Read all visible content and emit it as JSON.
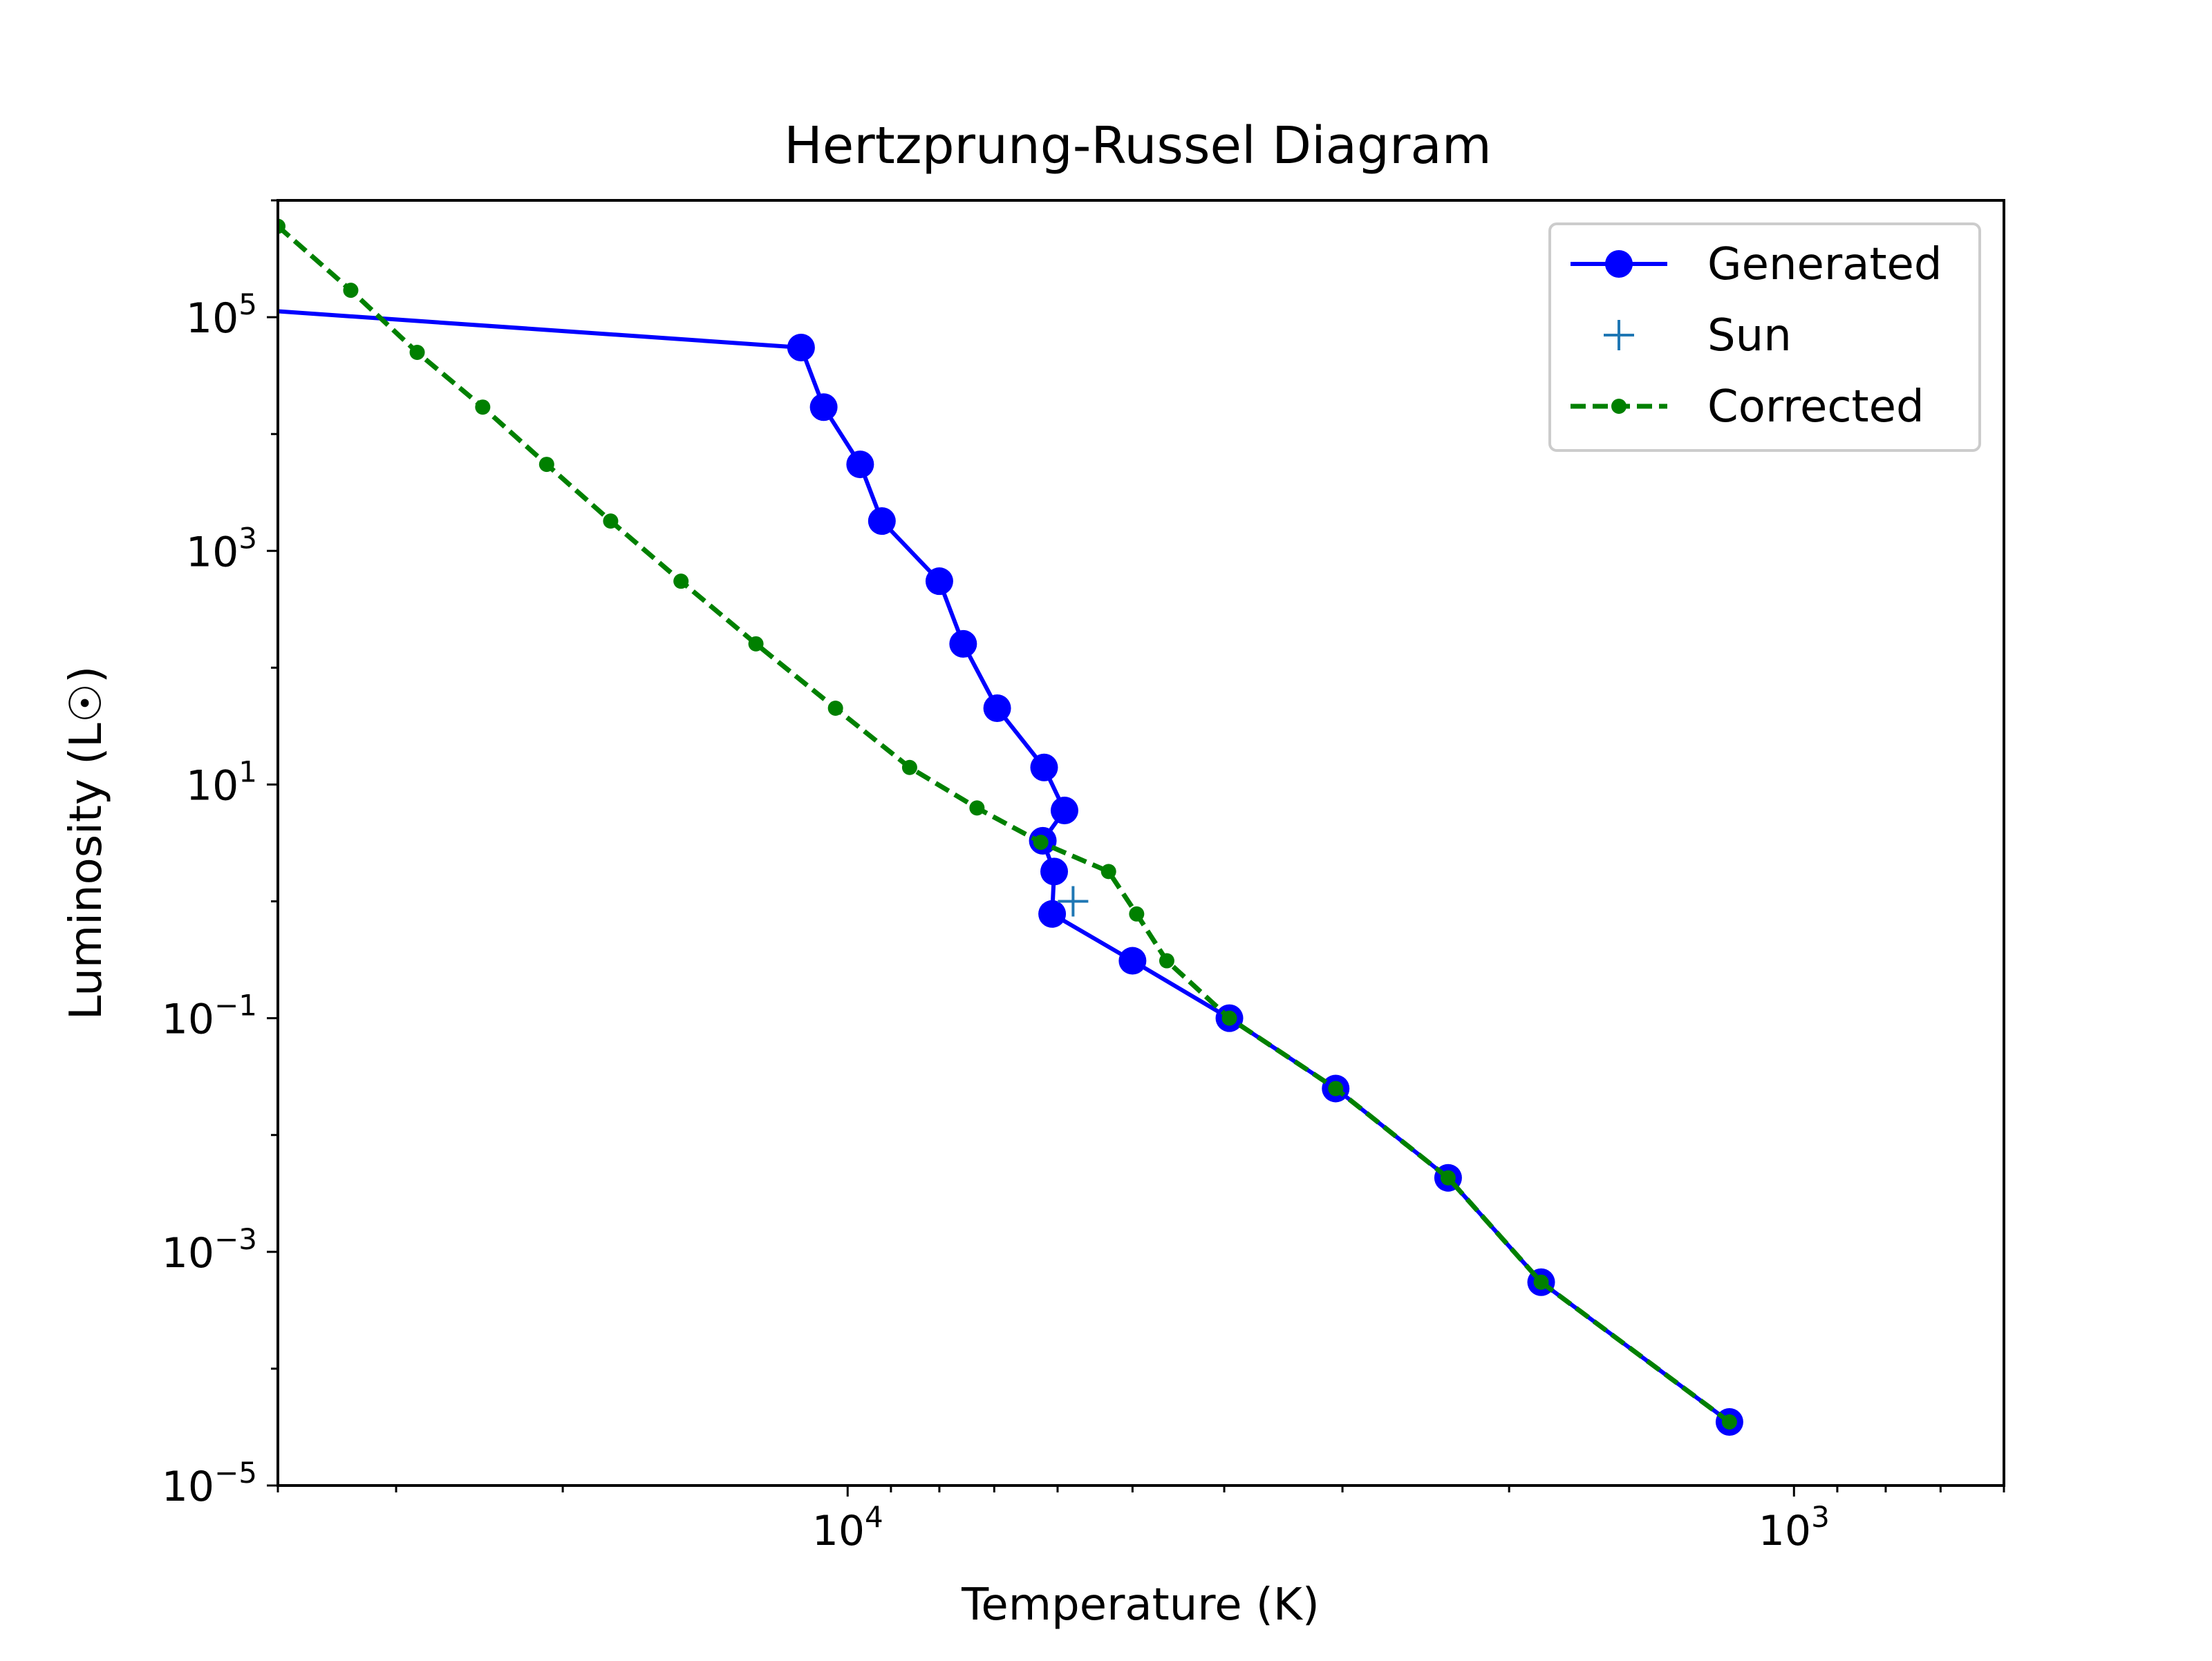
{
  "chart_data": {
    "type": "line",
    "title": "Hertzprung-Russel Diagram",
    "xlabel": "Temperature (K)",
    "ylabel": "Luminosity (L☉)",
    "x_scale": "log",
    "y_scale": "log",
    "x_inverted": true,
    "xlim": [
      40000,
      600
    ],
    "ylim": [
      1e-05,
      1000000
    ],
    "x_ticks": [
      {
        "value": 10000,
        "base": "10",
        "exp": "4"
      },
      {
        "value": 1000,
        "base": "10",
        "exp": "3"
      }
    ],
    "y_ticks": [
      {
        "value": 100000,
        "base": "10",
        "exp": "5"
      },
      {
        "value": 1000,
        "base": "10",
        "exp": "3"
      },
      {
        "value": 10,
        "base": "10",
        "exp": "1"
      },
      {
        "value": 0.1,
        "base": "10",
        "exp": "−1"
      },
      {
        "value": 0.001,
        "base": "10",
        "exp": "−3"
      },
      {
        "value": 1e-05,
        "base": "10",
        "exp": "−5"
      }
    ],
    "grid": false,
    "legend_position": "top-right",
    "series": [
      {
        "name": "Generated",
        "color": "#0000ff",
        "marker": "circle",
        "line_style": "solid",
        "points": [
          {
            "x": 45000,
            "y": 120000
          },
          {
            "x": 11200,
            "y": 55000
          },
          {
            "x": 10600,
            "y": 17000
          },
          {
            "x": 9700,
            "y": 5500
          },
          {
            "x": 9200,
            "y": 1800
          },
          {
            "x": 8000,
            "y": 550
          },
          {
            "x": 7550,
            "y": 160
          },
          {
            "x": 6950,
            "y": 45
          },
          {
            "x": 6200,
            "y": 14
          },
          {
            "x": 5900,
            "y": 6
          },
          {
            "x": 6220,
            "y": 3.3
          },
          {
            "x": 6050,
            "y": 1.8
          },
          {
            "x": 6080,
            "y": 0.78
          },
          {
            "x": 5000,
            "y": 0.31
          },
          {
            "x": 3950,
            "y": 0.1
          },
          {
            "x": 3050,
            "y": 0.025
          },
          {
            "x": 2320,
            "y": 0.0043
          },
          {
            "x": 1850,
            "y": 0.00055
          },
          {
            "x": 1170,
            "y": 3.5e-05
          }
        ]
      },
      {
        "name": "Sun",
        "color": "#1f77b4",
        "marker": "plus",
        "line_style": "none",
        "points": [
          {
            "x": 5778,
            "y": 1
          }
        ]
      },
      {
        "name": "Corrected",
        "color": "#008000",
        "marker": "dot",
        "line_style": "dashed",
        "points": [
          {
            "x": 40000,
            "y": 600000
          },
          {
            "x": 33500,
            "y": 170000
          },
          {
            "x": 28500,
            "y": 50000
          },
          {
            "x": 24300,
            "y": 17000
          },
          {
            "x": 20800,
            "y": 5500
          },
          {
            "x": 17800,
            "y": 1800
          },
          {
            "x": 15000,
            "y": 550
          },
          {
            "x": 12500,
            "y": 160
          },
          {
            "x": 10300,
            "y": 45
          },
          {
            "x": 8600,
            "y": 14
          },
          {
            "x": 7300,
            "y": 6.3
          },
          {
            "x": 6250,
            "y": 3.2
          },
          {
            "x": 5300,
            "y": 1.8
          },
          {
            "x": 4950,
            "y": 0.78
          },
          {
            "x": 4600,
            "y": 0.31
          },
          {
            "x": 3950,
            "y": 0.1
          },
          {
            "x": 3050,
            "y": 0.025
          },
          {
            "x": 2320,
            "y": 0.0043
          },
          {
            "x": 1850,
            "y": 0.00055
          },
          {
            "x": 1170,
            "y": 3.5e-05
          }
        ]
      }
    ]
  }
}
